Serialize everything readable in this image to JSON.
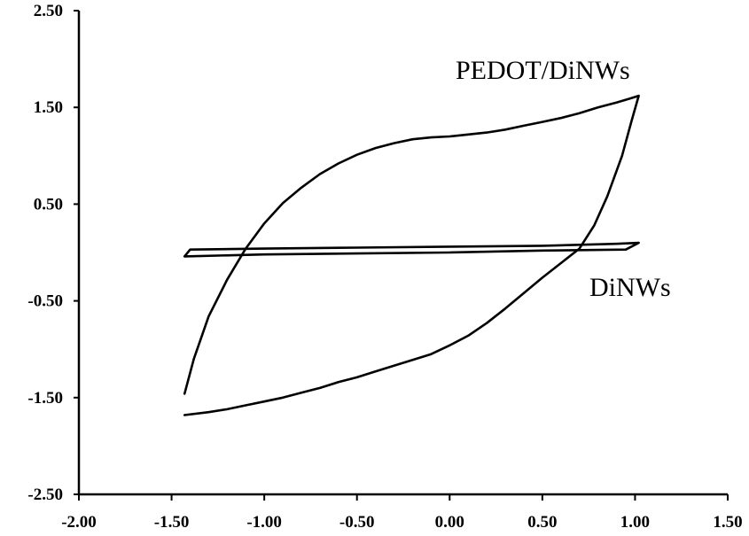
{
  "chart_data": {
    "type": "line",
    "title": "",
    "xlabel": "",
    "ylabel": "",
    "xlim": [
      -2.0,
      1.5
    ],
    "ylim": [
      -2.5,
      2.5
    ],
    "grid": false,
    "x_ticks": [
      -2.0,
      -1.5,
      -1.0,
      -0.5,
      0.0,
      0.5,
      1.0,
      1.5
    ],
    "x_tick_labels": [
      "-2.00",
      "-1.50",
      "-1.00",
      "-0.50",
      "0.00",
      "0.50",
      "1.00",
      "1.50"
    ],
    "y_ticks": [
      2.5,
      1.5,
      0.5,
      -0.5,
      -1.5,
      -2.5
    ],
    "y_tick_labels": [
      "2.50",
      "1.50",
      "0.50",
      "-0.50",
      "-1.50",
      "-2.50"
    ],
    "series": [
      {
        "name": "PEDOT/DiNWs",
        "x": [
          -1.43,
          -1.38,
          -1.3,
          -1.2,
          -1.1,
          -1.0,
          -0.9,
          -0.8,
          -0.7,
          -0.6,
          -0.5,
          -0.4,
          -0.3,
          -0.2,
          -0.1,
          0.0,
          0.1,
          0.2,
          0.3,
          0.4,
          0.5,
          0.6,
          0.7,
          0.8,
          0.9,
          0.97,
          1.02,
          0.98,
          0.93,
          0.85,
          0.78,
          0.7,
          0.62,
          0.5,
          0.4,
          0.3,
          0.2,
          0.1,
          0.0,
          -0.1,
          -0.2,
          -0.3,
          -0.4,
          -0.5,
          -0.6,
          -0.7,
          -0.8,
          -0.9,
          -1.0,
          -1.1,
          -1.2,
          -1.3,
          -1.43
        ],
        "y": [
          -1.46,
          -1.1,
          -0.66,
          -0.28,
          0.04,
          0.3,
          0.51,
          0.67,
          0.81,
          0.92,
          1.01,
          1.08,
          1.13,
          1.17,
          1.19,
          1.2,
          1.22,
          1.24,
          1.27,
          1.31,
          1.35,
          1.39,
          1.44,
          1.5,
          1.55,
          1.59,
          1.62,
          1.35,
          1.0,
          0.58,
          0.28,
          0.04,
          -0.08,
          -0.26,
          -0.42,
          -0.58,
          -0.73,
          -0.86,
          -0.96,
          -1.05,
          -1.11,
          -1.17,
          -1.23,
          -1.29,
          -1.34,
          -1.4,
          -1.45,
          -1.5,
          -1.54,
          -1.58,
          -1.62,
          -1.65,
          -1.68
        ]
      },
      {
        "name": "DiNWs",
        "x": [
          -1.43,
          -1.4,
          -1.0,
          -0.5,
          0.0,
          0.5,
          0.9,
          1.02,
          0.95,
          0.5,
          0.0,
          -0.5,
          -1.0,
          -1.43
        ],
        "y": [
          -0.04,
          0.03,
          0.04,
          0.05,
          0.06,
          0.07,
          0.09,
          0.1,
          0.03,
          0.02,
          0.0,
          -0.01,
          -0.02,
          -0.04
        ]
      }
    ]
  }
}
